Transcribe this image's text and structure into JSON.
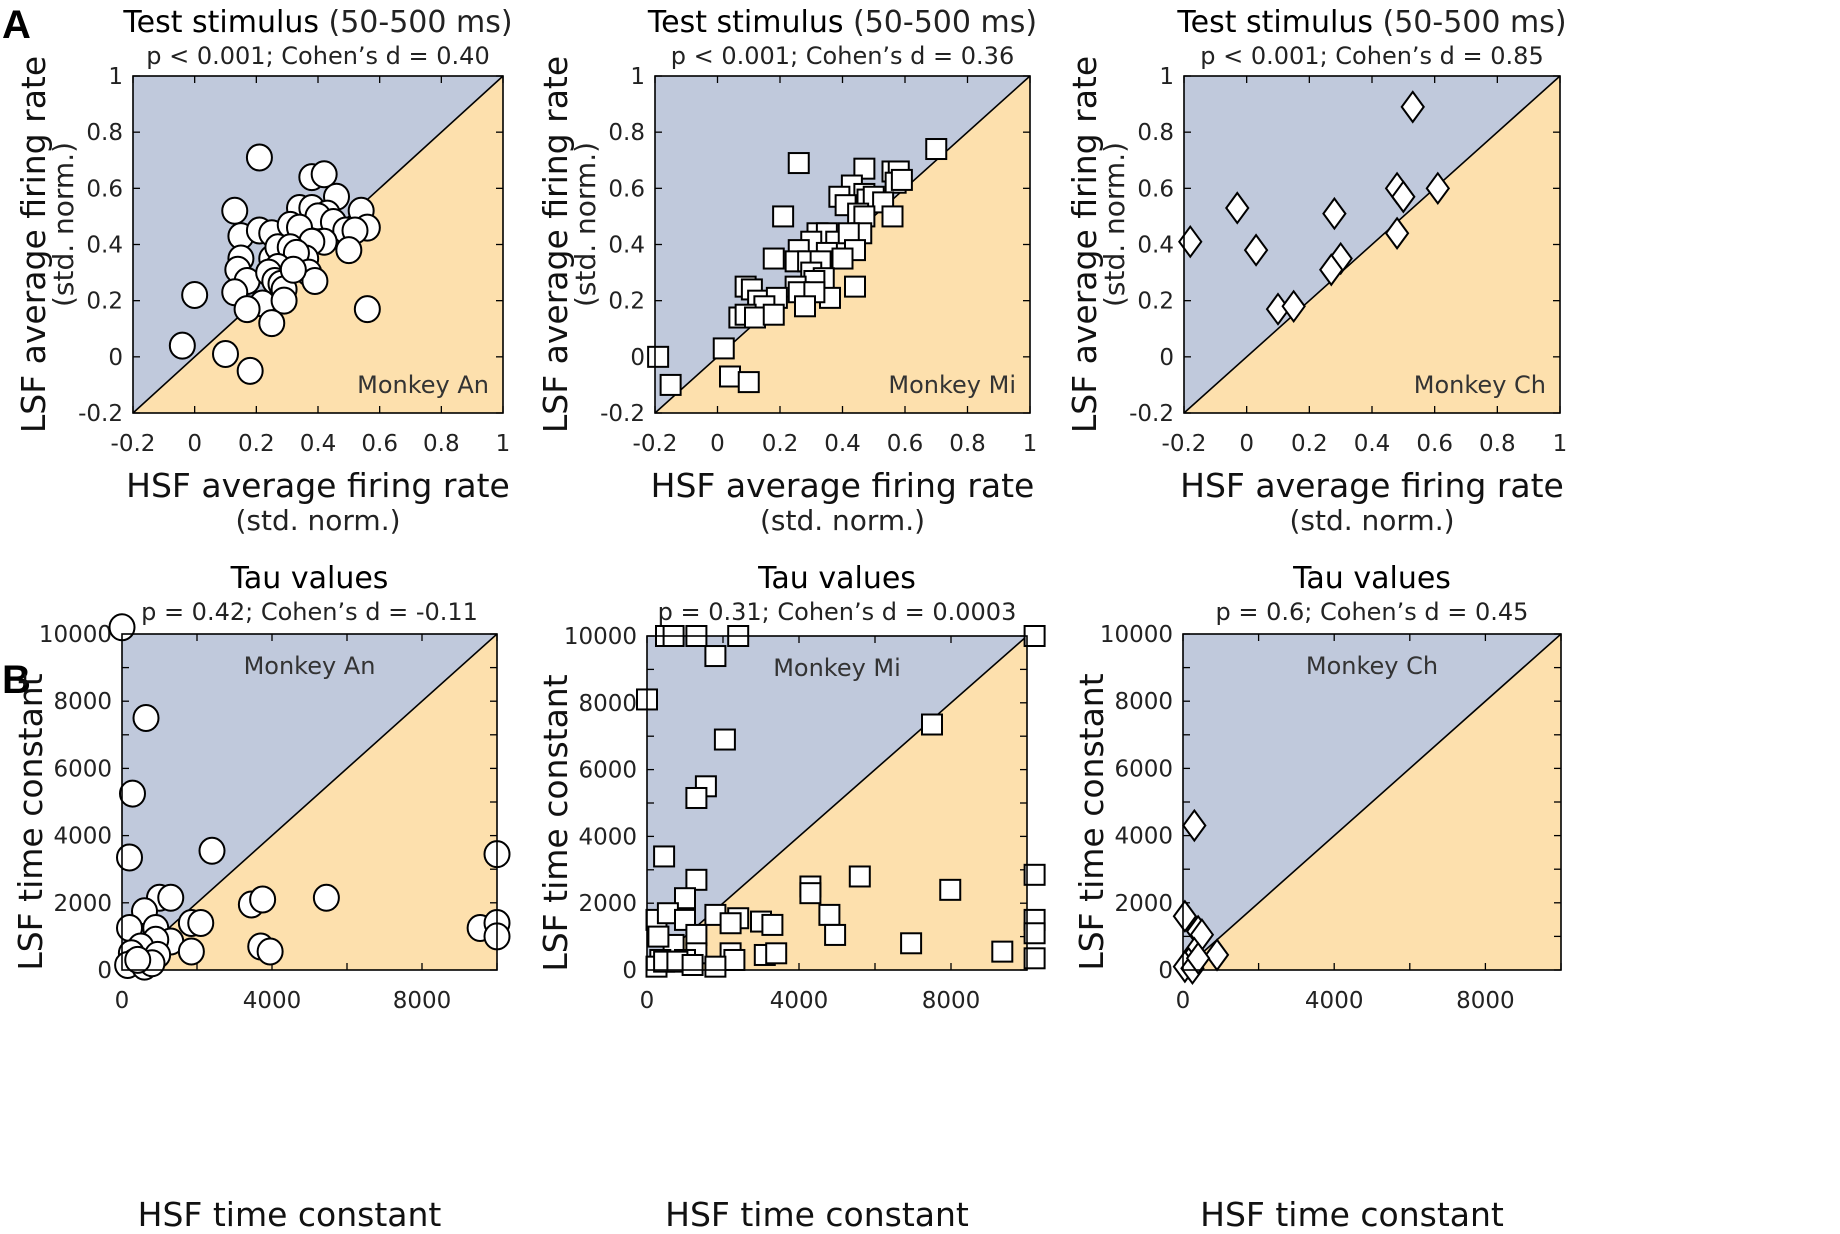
{
  "figure": {
    "panel_letters": [
      "A",
      "B"
    ],
    "colors": {
      "upper_region": "#c0c9dc",
      "lower_region": "#fde0ad",
      "marker_fill": "#ffffff",
      "marker_edge": "#000000",
      "diagonal": "#000000"
    }
  },
  "chart_data": [
    {
      "id": "A1",
      "row": "A",
      "type": "scatter",
      "marker": "circle",
      "title_bold": "Test stimulus",
      "title_light": " (50-500 ms)",
      "subtitle": "p < 0.001; Cohen’s d = 0.40",
      "annotation": "Monkey An",
      "annotation_position": "bottom-right",
      "xlabel": "HSF average firing rate",
      "xlabel_sub": "(std. norm.)",
      "ylabel": "LSF average firing rate",
      "ylabel_sub": "(std. norm.)",
      "xlim": [
        -0.2,
        1
      ],
      "ylim": [
        -0.2,
        1
      ],
      "xticks": [
        -0.2,
        0,
        0.2,
        0.4,
        0.6,
        0.8,
        1
      ],
      "yticks": [
        -0.2,
        0,
        0.2,
        0.4,
        0.6,
        0.8,
        1
      ],
      "xtick_labels": [
        "-0.2",
        "0",
        "0.2",
        "0.4",
        "0.6",
        "0.8",
        "1"
      ],
      "ytick_labels": [
        "-0.2",
        "0",
        "0.2",
        "0.4",
        "0.6",
        "0.8",
        "1"
      ],
      "diagonal": "y = x",
      "points": [
        [
          0.21,
          0.71
        ],
        [
          0.38,
          0.64
        ],
        [
          0.42,
          0.65
        ],
        [
          0.46,
          0.57
        ],
        [
          0.13,
          0.52
        ],
        [
          0.34,
          0.53
        ],
        [
          0.38,
          0.53
        ],
        [
          0.43,
          0.51
        ],
        [
          0.4,
          0.5
        ],
        [
          0.54,
          0.52
        ],
        [
          0.45,
          0.48
        ],
        [
          0.56,
          0.46
        ],
        [
          0.49,
          0.45
        ],
        [
          0.52,
          0.45
        ],
        [
          0.15,
          0.43
        ],
        [
          0.21,
          0.45
        ],
        [
          0.25,
          0.44
        ],
        [
          0.31,
          0.47
        ],
        [
          0.34,
          0.46
        ],
        [
          0.42,
          0.41
        ],
        [
          0.38,
          0.41
        ],
        [
          0.5,
          0.38
        ],
        [
          0.15,
          0.35
        ],
        [
          0.25,
          0.35
        ],
        [
          0.27,
          0.39
        ],
        [
          0.31,
          0.39
        ],
        [
          0.36,
          0.35
        ],
        [
          0.33,
          0.37
        ],
        [
          0.14,
          0.31
        ],
        [
          0.17,
          0.27
        ],
        [
          0.27,
          0.32
        ],
        [
          0.24,
          0.3
        ],
        [
          0.26,
          0.27
        ],
        [
          0.28,
          0.26
        ],
        [
          0.29,
          0.24
        ],
        [
          0.37,
          0.3
        ],
        [
          0.39,
          0.27
        ],
        [
          0.13,
          0.23
        ],
        [
          0.22,
          0.19
        ],
        [
          0.29,
          0.2
        ],
        [
          0.17,
          0.17
        ],
        [
          0.25,
          0.12
        ],
        [
          0.56,
          0.17
        ],
        [
          0.0,
          0.22
        ],
        [
          -0.04,
          0.04
        ],
        [
          0.1,
          0.01
        ],
        [
          0.18,
          -0.05
        ],
        [
          0.32,
          0.31
        ]
      ]
    },
    {
      "id": "A2",
      "row": "A",
      "type": "scatter",
      "marker": "square",
      "title_bold": "Test stimulus",
      "title_light": " (50-500 ms)",
      "subtitle": "p < 0.001; Cohen’s d = 0.36",
      "annotation": "Monkey Mi",
      "annotation_position": "bottom-right",
      "xlabel": "HSF average firing rate",
      "xlabel_sub": "(std. norm.)",
      "ylabel": "LSF average firing rate",
      "ylabel_sub": "(std. norm.)",
      "xlim": [
        -0.2,
        1
      ],
      "ylim": [
        -0.2,
        1
      ],
      "xticks": [
        -0.2,
        0,
        0.2,
        0.4,
        0.6,
        0.8,
        1
      ],
      "yticks": [
        -0.2,
        0,
        0.2,
        0.4,
        0.6,
        0.8,
        1
      ],
      "xtick_labels": [
        "-0.2",
        "0",
        "0.2",
        "0.4",
        "0.6",
        "0.8",
        "1"
      ],
      "ytick_labels": [
        "-0.2",
        "0",
        "0.2",
        "0.4",
        "0.6",
        "0.8",
        "1"
      ],
      "diagonal": "y = x",
      "points": [
        [
          0.7,
          0.74
        ],
        [
          0.26,
          0.69
        ],
        [
          0.47,
          0.67
        ],
        [
          0.56,
          0.66
        ],
        [
          0.58,
          0.66
        ],
        [
          0.57,
          0.62
        ],
        [
          0.59,
          0.63
        ],
        [
          0.43,
          0.61
        ],
        [
          0.39,
          0.57
        ],
        [
          0.47,
          0.58
        ],
        [
          0.48,
          0.56
        ],
        [
          0.5,
          0.57
        ],
        [
          0.53,
          0.55
        ],
        [
          0.41,
          0.54
        ],
        [
          0.45,
          0.51
        ],
        [
          0.47,
          0.5
        ],
        [
          0.56,
          0.5
        ],
        [
          0.21,
          0.5
        ],
        [
          0.32,
          0.44
        ],
        [
          0.35,
          0.44
        ],
        [
          0.46,
          0.44
        ],
        [
          0.3,
          0.41
        ],
        [
          0.38,
          0.41
        ],
        [
          0.42,
          0.44
        ],
        [
          0.44,
          0.38
        ],
        [
          0.35,
          0.37
        ],
        [
          0.26,
          0.38
        ],
        [
          0.18,
          0.35
        ],
        [
          0.25,
          0.34
        ],
        [
          0.29,
          0.34
        ],
        [
          0.33,
          0.34
        ],
        [
          0.4,
          0.35
        ],
        [
          0.3,
          0.3
        ],
        [
          0.34,
          0.28
        ],
        [
          0.31,
          0.27
        ],
        [
          0.44,
          0.25
        ],
        [
          0.36,
          0.21
        ],
        [
          0.25,
          0.25
        ],
        [
          0.26,
          0.23
        ],
        [
          0.31,
          0.23
        ],
        [
          0.09,
          0.25
        ],
        [
          0.11,
          0.24
        ],
        [
          0.13,
          0.2
        ],
        [
          0.19,
          0.21
        ],
        [
          0.15,
          0.18
        ],
        [
          0.28,
          0.18
        ],
        [
          0.07,
          0.14
        ],
        [
          0.09,
          0.15
        ],
        [
          0.12,
          0.14
        ],
        [
          0.18,
          0.15
        ],
        [
          0.02,
          0.03
        ],
        [
          -0.19,
          0.0
        ],
        [
          -0.15,
          -0.1
        ],
        [
          0.04,
          -0.07
        ],
        [
          0.1,
          -0.09
        ]
      ]
    },
    {
      "id": "A3",
      "row": "A",
      "type": "scatter",
      "marker": "diamond",
      "title_bold": "Test stimulus",
      "title_light": " (50-500 ms)",
      "subtitle": "p < 0.001; Cohen’s d = 0.85",
      "annotation": "Monkey Ch",
      "annotation_position": "bottom-right",
      "xlabel": "HSF average firing rate",
      "xlabel_sub": "(std. norm.)",
      "ylabel": "LSF average firing rate",
      "ylabel_sub": "(std. norm.)",
      "xlim": [
        -0.2,
        1
      ],
      "ylim": [
        -0.2,
        1
      ],
      "xticks": [
        -0.2,
        0,
        0.2,
        0.4,
        0.6,
        0.8,
        1
      ],
      "yticks": [
        -0.2,
        0,
        0.2,
        0.4,
        0.6,
        0.8,
        1
      ],
      "xtick_labels": [
        "-0.2",
        "0",
        "0.2",
        "0.4",
        "0.6",
        "0.8",
        "1"
      ],
      "ytick_labels": [
        "-0.2",
        "0",
        "0.2",
        "0.4",
        "0.6",
        "0.8",
        "1"
      ],
      "diagonal": "y = x",
      "points": [
        [
          0.53,
          0.89
        ],
        [
          -0.03,
          0.53
        ],
        [
          0.28,
          0.51
        ],
        [
          0.48,
          0.6
        ],
        [
          0.5,
          0.57
        ],
        [
          0.61,
          0.6
        ],
        [
          -0.18,
          0.41
        ],
        [
          0.03,
          0.38
        ],
        [
          0.48,
          0.44
        ],
        [
          0.3,
          0.35
        ],
        [
          0.27,
          0.31
        ],
        [
          0.1,
          0.17
        ],
        [
          0.15,
          0.18
        ]
      ]
    },
    {
      "id": "B1",
      "row": "B",
      "type": "scatter",
      "marker": "circle",
      "title_bold": "Tau values",
      "title_light": "",
      "subtitle": "p = 0.42; Cohen’s d = -0.11",
      "annotation": "Monkey An",
      "annotation_position": "top-center",
      "xlabel": "HSF time constant",
      "xlabel_sub": "",
      "ylabel": "LSF time constant",
      "ylabel_sub": "",
      "xlim": [
        0,
        10000
      ],
      "ylim": [
        0,
        10000
      ],
      "xticks": [
        0,
        4000,
        8000
      ],
      "xminor": [
        2000,
        6000,
        10000
      ],
      "yticks": [
        0,
        2000,
        4000,
        6000,
        8000,
        10000
      ],
      "yminor": [
        1000,
        3000,
        5000,
        7000,
        9000
      ],
      "xtick_labels": [
        "0",
        "4000",
        "8000"
      ],
      "ytick_labels": [
        "0",
        "2000",
        "4000",
        "6000",
        "8000",
        "10000"
      ],
      "diagonal": "y = x",
      "points": [
        [
          0,
          10200
        ],
        [
          640,
          7500
        ],
        [
          280,
          5250
        ],
        [
          200,
          3350
        ],
        [
          2400,
          3550
        ],
        [
          10000,
          3450
        ],
        [
          1000,
          2150
        ],
        [
          1300,
          2150
        ],
        [
          600,
          1750
        ],
        [
          3450,
          1950
        ],
        [
          3750,
          2100
        ],
        [
          5450,
          2150
        ],
        [
          1850,
          1400
        ],
        [
          2100,
          1400
        ],
        [
          200,
          1250
        ],
        [
          900,
          1250
        ],
        [
          9550,
          1250
        ],
        [
          10000,
          1400
        ],
        [
          10000,
          1000
        ],
        [
          1300,
          850
        ],
        [
          900,
          900
        ],
        [
          3700,
          700
        ],
        [
          3950,
          550
        ],
        [
          1850,
          550
        ],
        [
          500,
          700
        ],
        [
          250,
          500
        ],
        [
          950,
          450
        ],
        [
          350,
          250
        ],
        [
          150,
          150
        ],
        [
          600,
          100
        ],
        [
          800,
          200
        ],
        [
          420,
          300
        ]
      ]
    },
    {
      "id": "B2",
      "row": "B",
      "type": "scatter",
      "marker": "square",
      "title_bold": "Tau values",
      "title_light": "",
      "subtitle": "p = 0.31; Cohen’s d = 0.0003",
      "annotation": "Monkey Mi",
      "annotation_position": "top-center",
      "xlabel": "HSF time constant",
      "xlabel_sub": "",
      "ylabel": "LSF time constant",
      "ylabel_sub": "",
      "xlim": [
        0,
        10000
      ],
      "ylim": [
        0,
        10000
      ],
      "xticks": [
        0,
        4000,
        8000
      ],
      "xminor": [
        2000,
        6000,
        10000
      ],
      "yticks": [
        0,
        2000,
        4000,
        6000,
        8000,
        10000
      ],
      "yminor": [
        1000,
        3000,
        5000,
        7000,
        9000
      ],
      "xtick_labels": [
        "0",
        "4000",
        "8000"
      ],
      "ytick_labels": [
        "0",
        "2000",
        "4000",
        "6000",
        "8000",
        "10000"
      ],
      "diagonal": "y = x",
      "points": [
        [
          500,
          10000
        ],
        [
          700,
          10000
        ],
        [
          1300,
          10000
        ],
        [
          2400,
          10000
        ],
        [
          10200,
          10000
        ],
        [
          1800,
          9400
        ],
        [
          0,
          8100
        ],
        [
          2050,
          6900
        ],
        [
          1550,
          5500
        ],
        [
          1300,
          5150
        ],
        [
          450,
          3400
        ],
        [
          1300,
          2700
        ],
        [
          7500,
          7350
        ],
        [
          1000,
          2150
        ],
        [
          4300,
          2500
        ],
        [
          4300,
          2300
        ],
        [
          5600,
          2800
        ],
        [
          7980,
          2400
        ],
        [
          10200,
          2850
        ],
        [
          1800,
          1650
        ],
        [
          2400,
          1550
        ],
        [
          2200,
          1400
        ],
        [
          3000,
          1450
        ],
        [
          3300,
          1350
        ],
        [
          4800,
          1650
        ],
        [
          4950,
          1050
        ],
        [
          6950,
          800
        ],
        [
          9350,
          550
        ],
        [
          10200,
          1500
        ],
        [
          10200,
          1100
        ],
        [
          10200,
          350
        ],
        [
          250,
          1500
        ],
        [
          550,
          1700
        ],
        [
          1000,
          1500
        ],
        [
          1300,
          1050
        ],
        [
          700,
          750
        ],
        [
          300,
          1000
        ],
        [
          1300,
          500
        ],
        [
          2200,
          500
        ],
        [
          2300,
          300
        ],
        [
          3100,
          450
        ],
        [
          3400,
          500
        ],
        [
          350,
          300
        ],
        [
          1800,
          100
        ],
        [
          1000,
          300
        ],
        [
          250,
          100
        ],
        [
          450,
          250
        ],
        [
          800,
          250
        ],
        [
          1200,
          150
        ]
      ]
    },
    {
      "id": "B3",
      "row": "B",
      "type": "scatter",
      "marker": "diamond",
      "title_bold": "Tau values",
      "title_light": "",
      "subtitle": "p = 0.6; Cohen’s d = 0.45",
      "annotation": "Monkey Ch",
      "annotation_position": "top-center",
      "xlabel": "HSF time constant",
      "xlabel_sub": "",
      "ylabel": "LSF time constant",
      "ylabel_sub": "",
      "xlim": [
        0,
        10000
      ],
      "ylim": [
        0,
        10000
      ],
      "xticks": [
        0,
        4000,
        8000
      ],
      "xminor": [
        2000,
        6000,
        10000
      ],
      "yticks": [
        0,
        2000,
        4000,
        6000,
        8000,
        10000
      ],
      "yminor": [
        1000,
        3000,
        5000,
        7000,
        9000
      ],
      "xtick_labels": [
        "0",
        "4000",
        "8000"
      ],
      "ytick_labels": [
        "0",
        "2000",
        "4000",
        "6000",
        "8000",
        "10000"
      ],
      "diagonal": "y = x",
      "points": [
        [
          300,
          4300
        ],
        [
          50,
          1600
        ],
        [
          400,
          1150
        ],
        [
          500,
          1050
        ],
        [
          900,
          450
        ],
        [
          300,
          500
        ],
        [
          150,
          200
        ],
        [
          50,
          100
        ],
        [
          250,
          50
        ],
        [
          400,
          350
        ]
      ]
    }
  ]
}
